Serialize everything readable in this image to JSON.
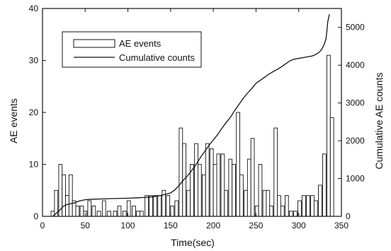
{
  "chart_data": {
    "type": "bar",
    "xlabel": "Time(sec)",
    "ylabel": "AE events",
    "y2label": "Cumulative AE counts",
    "xlim": [
      0,
      350
    ],
    "ylim": [
      0,
      40
    ],
    "y2lim": [
      0,
      5500
    ],
    "xticks": [
      0,
      50,
      100,
      150,
      200,
      250,
      300,
      350
    ],
    "yticks": [
      0,
      10,
      20,
      30,
      40
    ],
    "y2ticks": [
      0,
      1000,
      2000,
      3000,
      4000,
      5000
    ],
    "grid": false,
    "legend_position": "top-left",
    "bar_width": 4,
    "series": [
      {
        "name": "AE events",
        "kind": "bar",
        "axis": "left",
        "x": [
          12,
          16,
          21,
          25,
          29,
          33,
          37,
          41,
          46,
          50,
          55,
          60,
          66,
          72,
          78,
          85,
          90,
          96,
          101,
          107,
          112,
          116,
          122,
          127,
          132,
          137,
          142,
          147,
          152,
          157,
          162,
          166,
          171,
          175,
          180,
          184,
          189,
          193,
          198,
          202,
          206,
          211,
          215,
          220,
          224,
          229,
          233,
          238,
          242,
          246,
          251,
          255,
          260,
          264,
          268,
          273,
          277,
          281,
          286,
          291,
          296,
          301,
          306,
          311,
          316,
          320,
          325,
          330,
          335,
          339
        ],
        "values": [
          1,
          5,
          10,
          8,
          4,
          8,
          3,
          2,
          2,
          1,
          3,
          2,
          1,
          3,
          1,
          1,
          2,
          1,
          3,
          2,
          1,
          1,
          4,
          4,
          4,
          4,
          5,
          4,
          2,
          3,
          17,
          14,
          5,
          10,
          14,
          10,
          8,
          14,
          13,
          10,
          12,
          12,
          5,
          11,
          10,
          20,
          8,
          5,
          11,
          15,
          2,
          10,
          5,
          5,
          2,
          17,
          4,
          2,
          4,
          1,
          1,
          3,
          4,
          4,
          4,
          3,
          6,
          12,
          31,
          19
        ]
      },
      {
        "name": "Cumulative counts",
        "kind": "line",
        "axis": "right",
        "x": [
          12,
          15,
          18,
          21,
          24,
          27,
          30,
          34,
          38,
          42,
          46,
          50,
          55,
          60,
          70,
          80,
          100,
          110,
          120,
          130,
          140,
          150,
          155,
          160,
          165,
          170,
          175,
          180,
          185,
          190,
          195,
          200,
          205,
          210,
          215,
          220,
          225,
          230,
          235,
          240,
          245,
          250,
          255,
          260,
          265,
          270,
          275,
          280,
          285,
          290,
          295,
          300,
          305,
          310,
          315,
          318,
          321,
          324,
          327,
          330,
          332,
          333,
          334,
          335,
          336
        ],
        "values": [
          0,
          60,
          120,
          180,
          260,
          300,
          320,
          340,
          360,
          400,
          420,
          440,
          450,
          455,
          460,
          470,
          480,
          490,
          500,
          520,
          560,
          620,
          700,
          820,
          960,
          1080,
          1220,
          1380,
          1560,
          1720,
          1880,
          2020,
          2160,
          2330,
          2480,
          2620,
          2800,
          2960,
          3120,
          3260,
          3380,
          3520,
          3600,
          3680,
          3760,
          3830,
          3890,
          3960,
          4040,
          4120,
          4160,
          4180,
          4200,
          4220,
          4240,
          4260,
          4300,
          4340,
          4420,
          4560,
          4700,
          4900,
          5150,
          5250,
          5350
        ]
      }
    ]
  }
}
